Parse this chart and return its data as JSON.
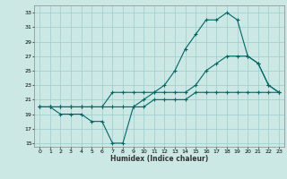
{
  "xlabel": "Humidex (Indice chaleur)",
  "bg_color": "#cce8e4",
  "grid_color": "#99cccc",
  "line_color": "#006666",
  "xlim": [
    -0.5,
    23.5
  ],
  "ylim": [
    14.5,
    34
  ],
  "yticks": [
    15,
    17,
    19,
    21,
    23,
    25,
    27,
    29,
    31,
    33
  ],
  "xticks": [
    0,
    1,
    2,
    3,
    4,
    5,
    6,
    7,
    8,
    9,
    10,
    11,
    12,
    13,
    14,
    15,
    16,
    17,
    18,
    19,
    20,
    21,
    22,
    23
  ],
  "line1_x": [
    0,
    1,
    2,
    3,
    4,
    5,
    6,
    7,
    8,
    9,
    10,
    11,
    12,
    13,
    14,
    15,
    16,
    17,
    18,
    19,
    20,
    21,
    22,
    23
  ],
  "line1_y": [
    20,
    20,
    19,
    19,
    19,
    18,
    18,
    15,
    15,
    20,
    21,
    22,
    23,
    25,
    28,
    30,
    32,
    32,
    33,
    32,
    27,
    26,
    23,
    22
  ],
  "line2_x": [
    0,
    1,
    2,
    3,
    4,
    5,
    6,
    7,
    8,
    9,
    10,
    11,
    12,
    13,
    14,
    15,
    16,
    17,
    18,
    19,
    20,
    21,
    22,
    23
  ],
  "line2_y": [
    20,
    20,
    20,
    20,
    20,
    20,
    20,
    22,
    22,
    22,
    22,
    22,
    22,
    22,
    22,
    23,
    25,
    26,
    27,
    27,
    27,
    26,
    23,
    22
  ],
  "line3_x": [
    0,
    1,
    2,
    3,
    4,
    5,
    6,
    7,
    8,
    9,
    10,
    11,
    12,
    13,
    14,
    15,
    16,
    17,
    18,
    19,
    20,
    21,
    22,
    23
  ],
  "line3_y": [
    20,
    20,
    20,
    20,
    20,
    20,
    20,
    20,
    20,
    20,
    20,
    21,
    21,
    21,
    21,
    22,
    22,
    22,
    22,
    22,
    22,
    22,
    22,
    22
  ]
}
